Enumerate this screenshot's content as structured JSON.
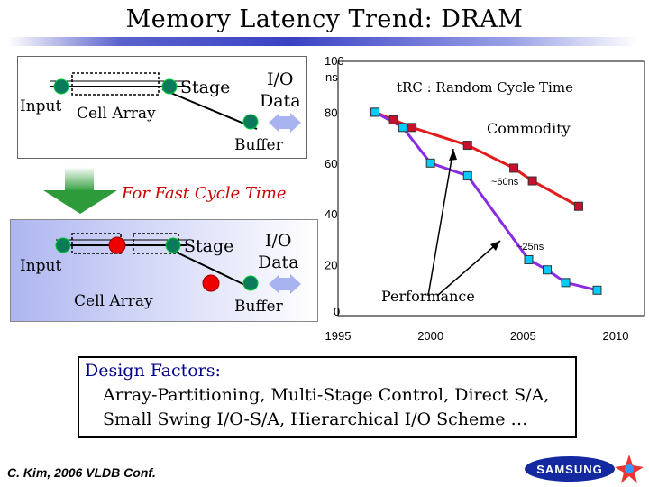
{
  "slide": {
    "title": "Memory Latency Trend: DRAM",
    "footer": "C. Kim, 2006 VLDB Conf.",
    "logo_text": "SAMSUNG"
  },
  "diagram_top": {
    "stage": "Stage",
    "io_data": [
      "I/O",
      "Data"
    ],
    "input": "Input",
    "cell_array": "Cell Array",
    "buffer": "Buffer"
  },
  "transition": {
    "label": "For Fast Cycle Time"
  },
  "diagram_bottom": {
    "stage": "Stage",
    "io_data": [
      "I/O",
      "Data"
    ],
    "input": "Input",
    "cell_array": "Cell Array",
    "buffer": "Buffer"
  },
  "design_factors": {
    "title": "Design Factors:",
    "line1": "Array-Partitioning, Multi-Stage Control, Direct S/A,",
    "line2": "Small Swing I/O-S/A, Hierarchical I/O Scheme …"
  },
  "colors": {
    "commodity": "#e21b1b",
    "performance": "#8a2be2",
    "commodity_marker": "#c8102e",
    "performance_marker": "#00ccff",
    "node_green": "#0a7a5a",
    "node_red": "#ee0000"
  },
  "chart_data": {
    "type": "line",
    "title": "tRC : Random Cycle Time",
    "ylabel": "",
    "xlabel": "",
    "xlim": [
      1995,
      2010
    ],
    "ylim": [
      0,
      100
    ],
    "x_ticks": [
      "1995",
      "2000",
      "2005",
      "2010"
    ],
    "y_ticks": [
      "0",
      "20",
      "40",
      "60",
      "80",
      "100"
    ],
    "y_unit": "ns",
    "grid": false,
    "series": [
      {
        "name": "Commodity",
        "x": [
          1997,
          1998,
          1999,
          2002,
          2004.5,
          2005.5,
          2008
        ],
        "y": [
          80,
          77,
          74,
          67,
          58,
          53,
          43
        ]
      },
      {
        "name": "Performance",
        "x": [
          1997,
          1998.5,
          2000,
          2002,
          2005.3,
          2006.3,
          2007.3,
          2009
        ],
        "y": [
          80,
          74,
          60,
          55,
          22,
          18,
          13,
          10
        ]
      }
    ],
    "annotations": [
      {
        "text": "~60ns"
      },
      {
        "text": "~25ns"
      }
    ]
  }
}
